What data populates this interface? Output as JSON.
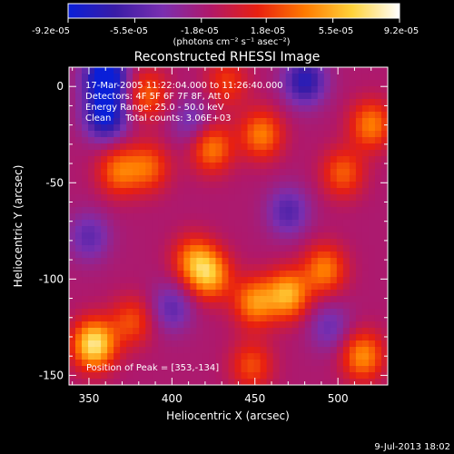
{
  "colorbar": {
    "tick_labels": [
      "-9.2e-05",
      "-5.5e-05",
      "-1.8e-05",
      "1.8e-05",
      "5.5e-05",
      "9.2e-05"
    ],
    "unit_label": "(photons cm⁻² s⁻¹ asec⁻²)",
    "range": [
      -9.2e-05,
      9.2e-05
    ],
    "colors": [
      "#0a1fd8",
      "#3a1ca6",
      "#7a2fb0",
      "#b0186a",
      "#e82010",
      "#ff7a00",
      "#ffd23a",
      "#ffffff"
    ]
  },
  "chart_data": {
    "type": "heatmap",
    "title": "Reconstructed RHESSI Image",
    "xlabel": "Heliocentric X (arcsec)",
    "ylabel": "Heliocentric Y (arcsec)",
    "xlim": [
      338,
      530
    ],
    "ylim": [
      -155,
      10
    ],
    "x_ticks": [
      "350",
      "400",
      "450",
      "500"
    ],
    "y_ticks": [
      "0",
      "-50",
      "-100",
      "-150"
    ],
    "annotations": [
      "17-Mar-2005 11:22:04.000 to 11:26:40.000",
      "Detectors: 4F 5F 6F 7F 8F, Att 0",
      "Energy Range: 25.0 - 50.0 keV",
      "Clean     Total counts: 3.06E+03"
    ],
    "peak_label": "Position of Peak = [353,-134]",
    "peak_position": [
      353,
      -134
    ],
    "sources": [
      {
        "x": 353,
        "y": -134,
        "peak": 9.2e-05
      },
      {
        "x": 470,
        "y": -108,
        "peak": 7e-05
      },
      {
        "x": 450,
        "y": -112,
        "peak": 6e-05
      },
      {
        "x": 492,
        "y": -95,
        "peak": 5.5e-05
      },
      {
        "x": 423,
        "y": -98,
        "peak": 6.5e-05
      },
      {
        "x": 413,
        "y": -90,
        "peak": 5e-05
      },
      {
        "x": 368,
        "y": -44,
        "peak": 5e-05
      },
      {
        "x": 386,
        "y": -42,
        "peak": 4.5e-05
      },
      {
        "x": 424,
        "y": -32,
        "peak": 5.5e-05
      },
      {
        "x": 454,
        "y": -25,
        "peak": 5.5e-05
      },
      {
        "x": 385,
        "y": -4,
        "peak": 4.5e-05
      },
      {
        "x": 433,
        "y": 2,
        "peak": 3.5e-05
      },
      {
        "x": 520,
        "y": -20,
        "peak": 5.5e-05
      },
      {
        "x": 503,
        "y": -45,
        "peak": 4.5e-05
      },
      {
        "x": 515,
        "y": -140,
        "peak": 6e-05
      },
      {
        "x": 448,
        "y": -145,
        "peak": 4e-05
      },
      {
        "x": 376,
        "y": -122,
        "peak": 4e-05
      },
      {
        "x": 360,
        "y": 5,
        "peak": -9.2e-05
      },
      {
        "x": 360,
        "y": -15,
        "peak": -7.5e-05
      },
      {
        "x": 412,
        "y": -18,
        "peak": -3e-05
      },
      {
        "x": 480,
        "y": 3,
        "peak": -6e-05
      },
      {
        "x": 470,
        "y": -65,
        "peak": -4e-05
      },
      {
        "x": 400,
        "y": -115,
        "peak": -3.5e-05
      },
      {
        "x": 350,
        "y": -78,
        "peak": -3.5e-05
      },
      {
        "x": 495,
        "y": -125,
        "peak": -3e-05
      }
    ]
  },
  "footer": {
    "timestamp": "9-Jul-2013 18:02"
  }
}
